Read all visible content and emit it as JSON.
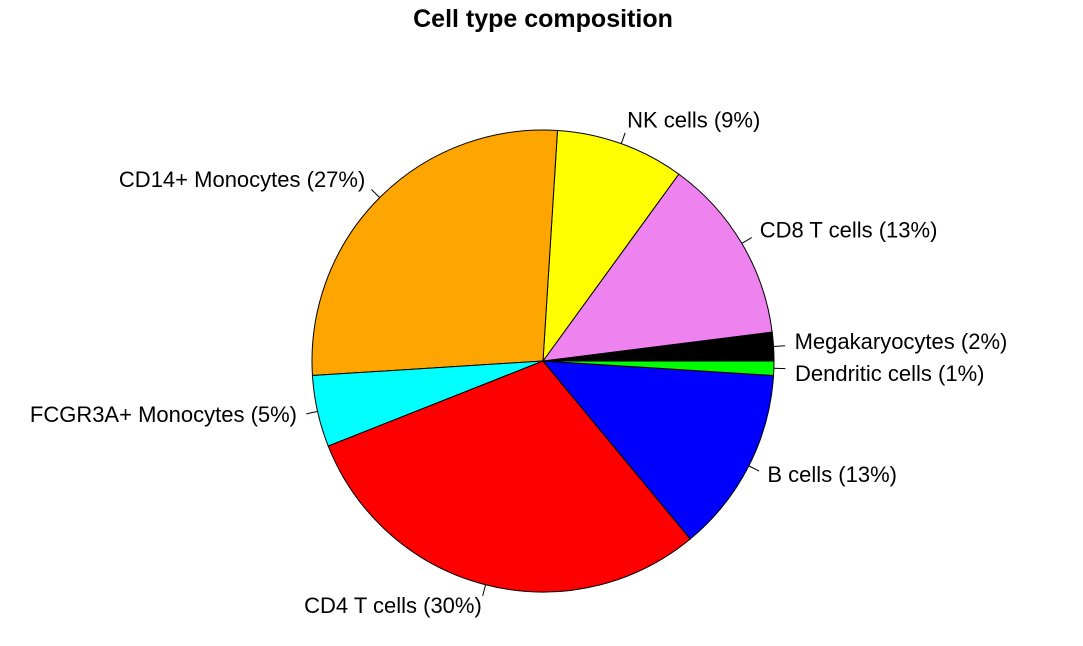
{
  "chart_data": {
    "type": "pie",
    "title": "Cell type composition",
    "slices": [
      {
        "label": "Megakaryocytes (2%)",
        "value": 2,
        "color": "#000000"
      },
      {
        "label": "CD8 T cells (13%)",
        "value": 13,
        "color": "#EE82EE"
      },
      {
        "label": "NK cells (9%)",
        "value": 9,
        "color": "#FFFF00"
      },
      {
        "label": "CD14+ Monocytes (27%)",
        "value": 27,
        "color": "#FFA500"
      },
      {
        "label": "FCGR3A+ Monocytes (5%)",
        "value": 5,
        "color": "#00FFFF"
      },
      {
        "label": "CD4 T cells (30%)",
        "value": 30,
        "color": "#FF0000"
      },
      {
        "label": "B cells (13%)",
        "value": 13,
        "color": "#0000FF"
      },
      {
        "label": "Dendritic cells (1%)",
        "value": 1,
        "color": "#00FF00"
      }
    ]
  }
}
